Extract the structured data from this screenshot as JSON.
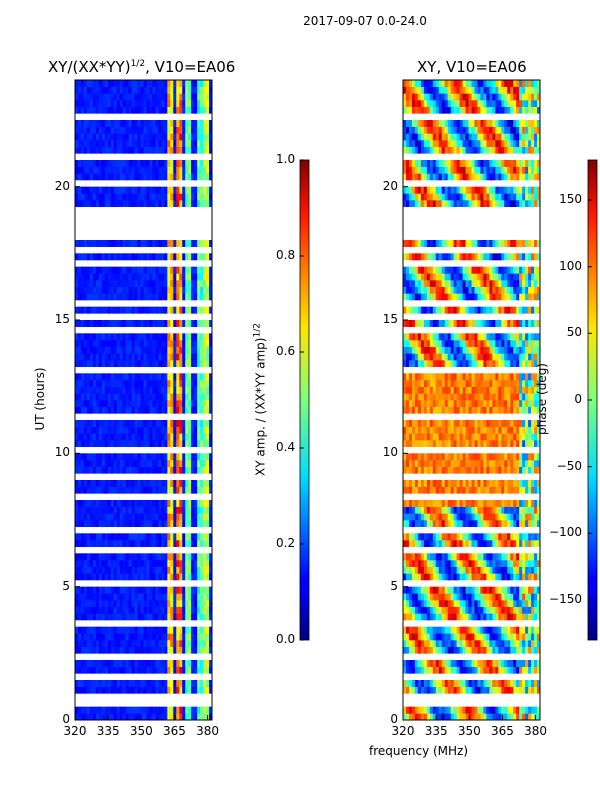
{
  "figure": {
    "suptitle": "2017-09-07 0.0-24.0",
    "xlabel": "frequency (MHz)",
    "ylabel": "UT (hours)",
    "left_title_main": "XY/(XX*YY)",
    "left_title_exp": "1/2",
    "left_title_tail": ", V10=EA06",
    "right_title": "XY, V10=EA06",
    "cbar_left_label": "XY amp. / (XX*YY amp)",
    "cbar_left_exp": "1/2",
    "cbar_right_label": "phase (deg)"
  },
  "chart_data": [
    {
      "type": "heatmap",
      "title": "XY/(XX*YY)^1/2, V10=EA06",
      "xlabel": "frequency (MHz)",
      "ylabel": "UT (hours)",
      "xlim": [
        320,
        382
      ],
      "ylim": [
        0,
        24
      ],
      "xticks": [
        320,
        335,
        350,
        365,
        380
      ],
      "yticks": [
        0,
        5,
        10,
        15,
        20
      ],
      "colorbar": {
        "label": "XY amp. / (XX*YY amp)^1/2",
        "range": [
          0.0,
          1.0
        ],
        "ticks": [
          "0.0",
          "0.2",
          "0.4",
          "0.6",
          "0.8",
          "1.0"
        ]
      }
    },
    {
      "type": "heatmap",
      "title": "XY, V10=EA06",
      "xlabel": "frequency (MHz)",
      "ylabel": "UT (hours)",
      "xlim": [
        320,
        382
      ],
      "ylim": [
        0,
        24
      ],
      "xticks": [
        320,
        335,
        350,
        365,
        380
      ],
      "yticks": [
        0,
        5,
        10,
        15,
        20
      ],
      "colorbar": {
        "label": "phase (deg)",
        "range": [
          -180,
          180
        ],
        "ticks": [
          "150",
          "100",
          "50",
          "0",
          "−50",
          "−100",
          "−150"
        ]
      }
    }
  ]
}
